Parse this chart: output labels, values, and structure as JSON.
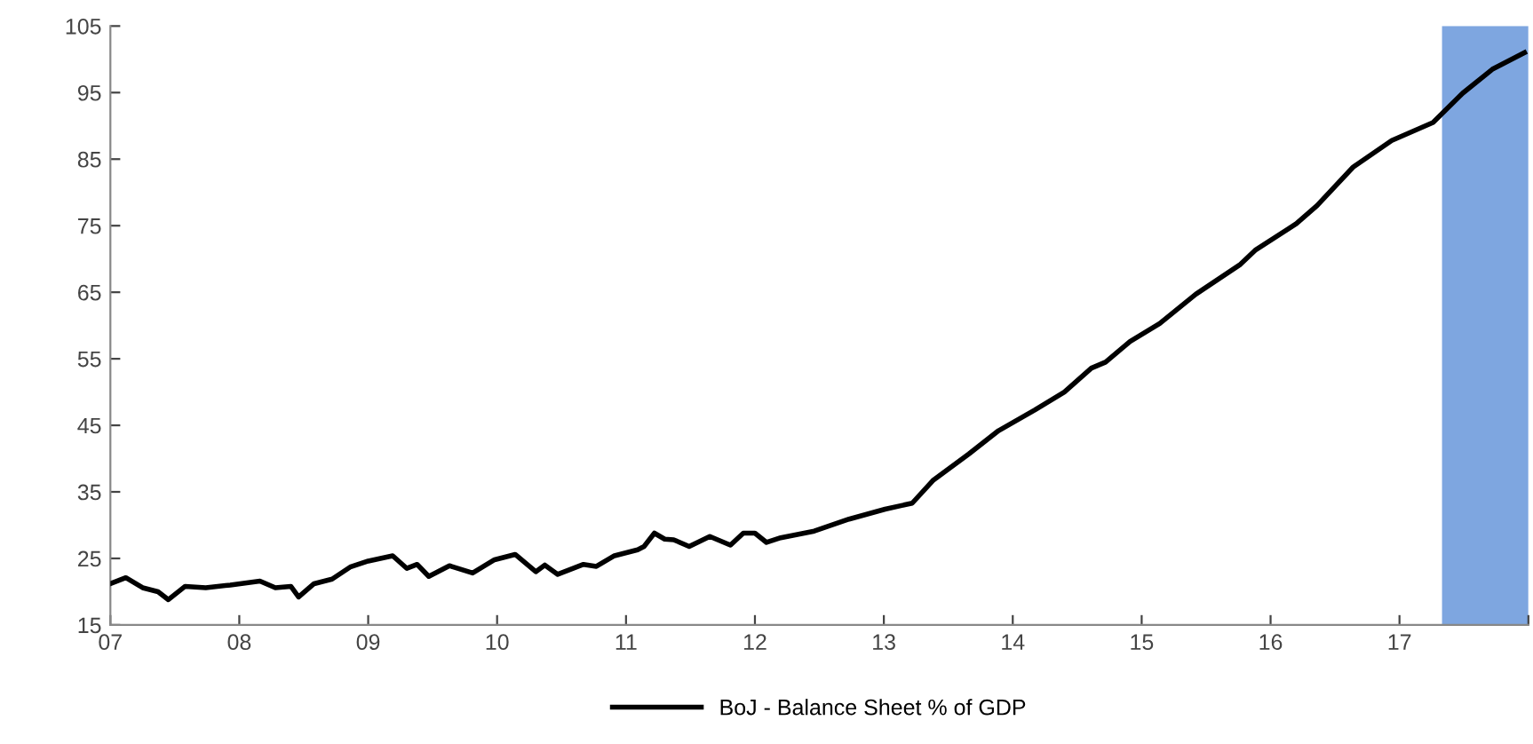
{
  "chart_data": {
    "type": "line",
    "x": [
      2007.0,
      2007.12,
      2007.25,
      2007.37,
      2007.45,
      2007.58,
      2007.74,
      2007.93,
      2008.16,
      2008.28,
      2008.4,
      2008.46,
      2008.58,
      2008.72,
      2008.86,
      2009.0,
      2009.19,
      2009.3,
      2009.38,
      2009.47,
      2009.63,
      2009.81,
      2009.98,
      2010.14,
      2010.3,
      2010.37,
      2010.47,
      2010.67,
      2010.77,
      2010.91,
      2011.09,
      2011.14,
      2011.22,
      2011.3,
      2011.37,
      2011.49,
      2011.65,
      2011.81,
      2011.91,
      2012.0,
      2012.09,
      2012.2,
      2012.46,
      2012.73,
      2013.01,
      2013.22,
      2013.38,
      2013.66,
      2013.89,
      2014.17,
      2014.4,
      2014.61,
      2014.72,
      2014.91,
      2015.14,
      2015.42,
      2015.76,
      2015.88,
      2016.2,
      2016.36,
      2016.64,
      2016.94,
      2017.26,
      2017.49,
      2017.72,
      2017.97
    ],
    "series": [
      {
        "name": "BoJ - Balance Sheet % of GDP",
        "color": "#000000",
        "values": [
          21.2,
          22.1,
          20.6,
          20.0,
          18.8,
          20.8,
          20.6,
          21.0,
          21.6,
          20.6,
          20.8,
          19.2,
          21.2,
          21.9,
          23.7,
          24.6,
          25.4,
          23.5,
          24.1,
          22.3,
          23.9,
          22.8,
          24.8,
          25.6,
          23.0,
          24.0,
          22.6,
          24.1,
          23.8,
          25.4,
          26.3,
          26.8,
          28.8,
          27.9,
          27.8,
          26.8,
          28.3,
          27.0,
          28.8,
          28.8,
          27.4,
          28.1,
          29.1,
          30.9,
          32.4,
          33.3,
          36.7,
          40.7,
          44.2,
          47.3,
          50.0,
          53.6,
          54.5,
          57.6,
          60.3,
          64.7,
          69.1,
          71.3,
          75.3,
          78.0,
          83.8,
          87.8,
          90.5,
          94.9,
          98.5,
          101.0
        ]
      }
    ],
    "xlim": [
      2007,
      2018
    ],
    "xticks": [
      {
        "value": 2007,
        "label": "07"
      },
      {
        "value": 2008,
        "label": "08"
      },
      {
        "value": 2009,
        "label": "09"
      },
      {
        "value": 2010,
        "label": "10"
      },
      {
        "value": 2011,
        "label": "11"
      },
      {
        "value": 2012,
        "label": "12"
      },
      {
        "value": 2013,
        "label": "13"
      },
      {
        "value": 2014,
        "label": "14"
      },
      {
        "value": 2015,
        "label": "15"
      },
      {
        "value": 2016,
        "label": "16"
      },
      {
        "value": 2017,
        "label": "17"
      },
      {
        "value": 2018,
        "label": null
      }
    ],
    "ylim": [
      15,
      105
    ],
    "yticks": [
      15,
      25,
      35,
      45,
      55,
      65,
      75,
      85,
      95,
      105
    ],
    "bands": [
      {
        "axis": "x",
        "from": 2017.33,
        "to": 2018,
        "color": "#7ea6e0"
      }
    ],
    "grid": false,
    "legend": "bottom",
    "marker": "none",
    "line_style": "solid"
  }
}
